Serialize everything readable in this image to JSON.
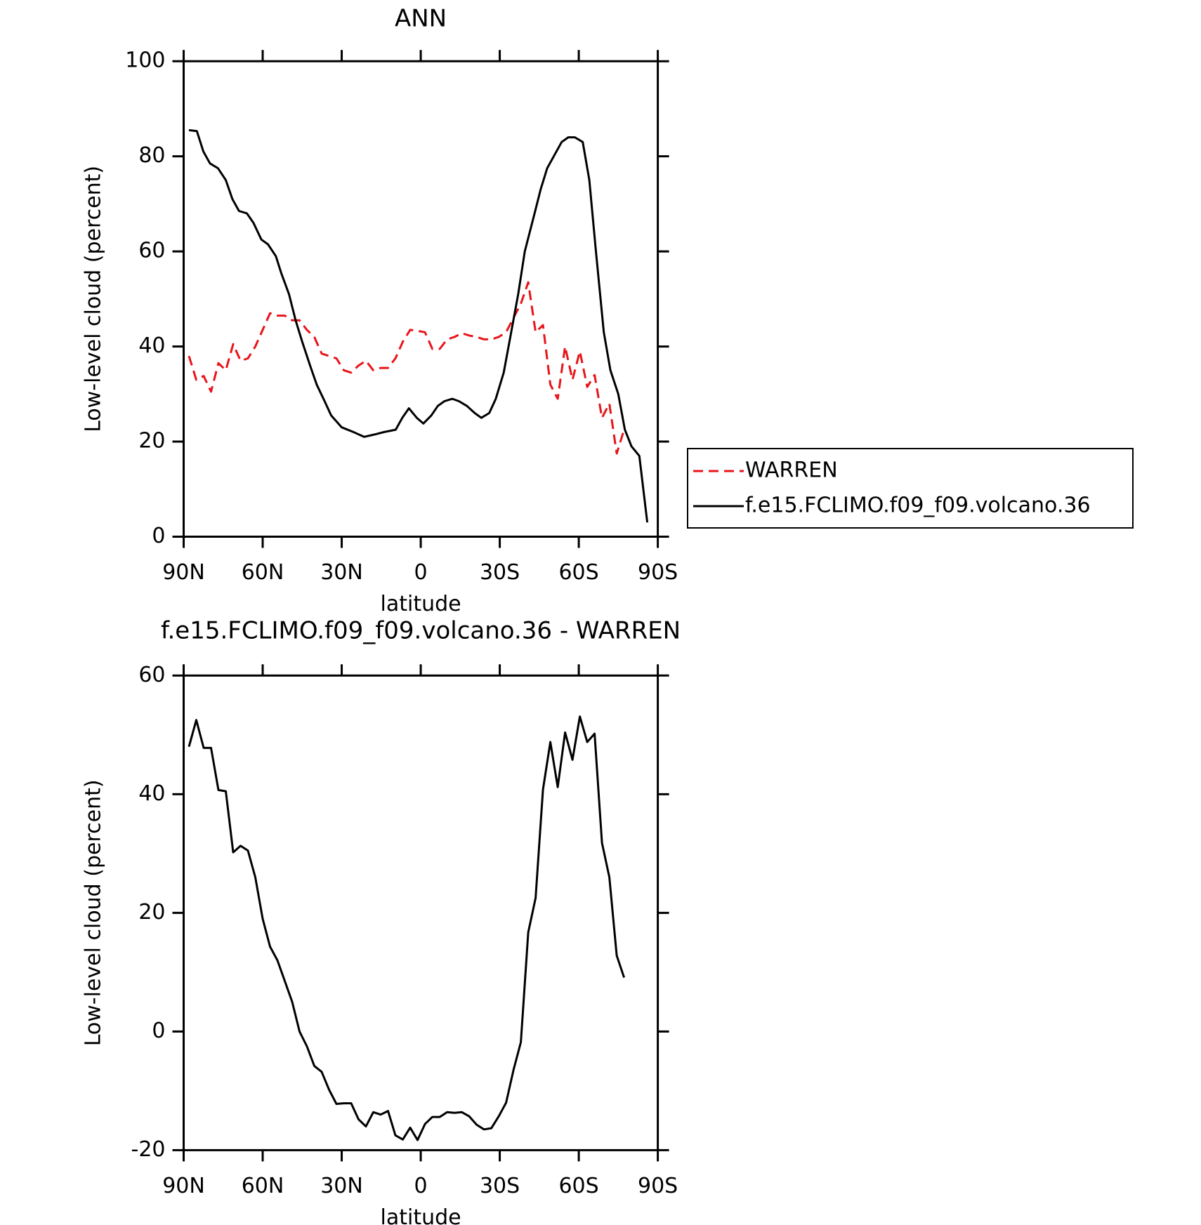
{
  "chart_data": [
    {
      "type": "line",
      "title": "ANN",
      "xlabel": "latitude",
      "ylabel": "Low-level cloud (percent)",
      "xlim": [
        90,
        -90
      ],
      "ylim": [
        0,
        100
      ],
      "xticks": [
        {
          "value": 90,
          "label": "90N"
        },
        {
          "value": 60,
          "label": "60N"
        },
        {
          "value": 30,
          "label": "30N"
        },
        0,
        {
          "value": -30,
          "label": "30S"
        },
        {
          "value": -60,
          "label": "60S"
        },
        {
          "value": -90,
          "label": "90S"
        }
      ],
      "yticks": [
        0,
        20,
        40,
        60,
        80,
        100
      ],
      "legend": "right",
      "series": [
        {
          "name": "WARREN",
          "color": "#e8141a",
          "line_style": "dashed",
          "x": [
            88,
            85.2,
            82.4,
            79.6,
            76.8,
            74,
            71.2,
            68.4,
            65.6,
            62.8,
            60,
            57.2,
            54.4,
            51.6,
            48.8,
            46,
            43.2,
            40.4,
            37.6,
            34.8,
            32,
            29.2,
            26.4,
            23.6,
            20.8,
            18,
            15.2,
            12.4,
            9.6,
            6.8,
            4,
            1.2,
            -1.6,
            -4.4,
            -7.2,
            -10,
            -12.8,
            -15.6,
            -18.4,
            -21.2,
            -24,
            -26.8,
            -29.6,
            -32.4,
            -35.2,
            -38,
            -40.8,
            -43.6,
            -46.4,
            -49.2,
            -52,
            -54.8,
            -57.6,
            -60.4,
            -63.2,
            -66,
            -68.8,
            -71.6,
            -74.4,
            -77.2
          ],
          "values": [
            38,
            33,
            33.8,
            30.5,
            36.5,
            35,
            40.5,
            37,
            37.5,
            40,
            43.5,
            47,
            46.5,
            46.5,
            45.5,
            45.5,
            43.5,
            42,
            38.5,
            38,
            37.5,
            35,
            34.5,
            36,
            37,
            35,
            35.5,
            35.5,
            37.5,
            41,
            43.5,
            43.3,
            43,
            39.5,
            39.5,
            41.5,
            42,
            42.8,
            42.3,
            42,
            41.5,
            41.5,
            42,
            43,
            46,
            49,
            53.5,
            43,
            44.5,
            32,
            29,
            40,
            33,
            39,
            31.5,
            34,
            25,
            28,
            17.5,
            22.5
          ]
        },
        {
          "name": "f.e15.FCLIMO.f09_f09.volcano.36",
          "color": "#000000",
          "line_style": "solid",
          "x": [
            88,
            85,
            82.5,
            80,
            77,
            74,
            71.5,
            69,
            66,
            63.5,
            60.5,
            58,
            55,
            53,
            50,
            47.5,
            45,
            42,
            39.5,
            36.5,
            34,
            30,
            25.5,
            21.5,
            17.5,
            14,
            9.5,
            7,
            4.5,
            1.5,
            -1,
            -4,
            -6.5,
            -9,
            -12,
            -14.5,
            -17.5,
            -20.5,
            -23,
            -26,
            -28.5,
            -31.5,
            -34,
            -37,
            -39.5,
            -43,
            -45.5,
            -48,
            -51,
            -53.5,
            -56,
            -58.5,
            -61.5,
            -64,
            -66.5,
            -69.5,
            -72,
            -75,
            -77.5,
            -80,
            -83,
            -86
          ],
          "values": [
            85.5,
            85.3,
            81,
            78.5,
            77.5,
            75,
            71,
            68.5,
            68,
            66,
            62.5,
            61.5,
            59,
            55.5,
            51,
            45.5,
            41,
            36,
            32,
            28.5,
            25.5,
            23,
            22,
            21,
            21.5,
            22,
            22.5,
            25,
            27,
            25,
            23.8,
            25.5,
            27.5,
            28.5,
            29,
            28.5,
            27.5,
            26,
            25,
            26,
            29,
            34.5,
            42,
            51,
            60,
            67.5,
            73,
            77.5,
            80.5,
            83,
            84,
            84,
            83,
            75,
            60,
            43,
            35,
            30,
            22.5,
            19,
            17,
            3
          ]
        }
      ]
    },
    {
      "type": "line",
      "title": "f.e15.FCLIMO.f09_f09.volcano.36 - WARREN",
      "xlabel": "latitude",
      "ylabel": "Low-level cloud (percent)",
      "xlim": [
        90,
        -90
      ],
      "ylim": [
        -20,
        60
      ],
      "xticks": [
        {
          "value": 90,
          "label": "90N"
        },
        {
          "value": 60,
          "label": "60N"
        },
        {
          "value": 30,
          "label": "30N"
        },
        0,
        {
          "value": -30,
          "label": "30S"
        },
        {
          "value": -60,
          "label": "60S"
        },
        {
          "value": -90,
          "label": "90S"
        }
      ],
      "yticks": [
        -20,
        0,
        20,
        40,
        60
      ],
      "color": "#000000",
      "x": [
        88,
        85.2,
        82.4,
        79.6,
        76.8,
        74,
        71.2,
        68.4,
        65.6,
        62.8,
        60,
        57.2,
        54.4,
        51.6,
        48.8,
        46,
        43.2,
        40.4,
        37.6,
        34.8,
        32,
        29.2,
        26.4,
        23.6,
        20.8,
        18,
        15.2,
        12.4,
        9.6,
        6.8,
        4,
        1.2,
        -1.6,
        -4.4,
        -7.2,
        -10,
        -12.8,
        -15.6,
        -18.4,
        -21.2,
        -24,
        -26.8,
        -29.6,
        -32.4,
        -35.2,
        -38,
        -40.8,
        -43.6,
        -46.4,
        -49.2,
        -52,
        -54.8,
        -57.6,
        -60.4,
        -63.2,
        -66,
        -68.8,
        -71.6,
        -74.4,
        -77.2
      ],
      "values": [
        48,
        52.5,
        47.8,
        47.8,
        40.7,
        40.5,
        30.2,
        31.3,
        30.5,
        26,
        19,
        14.3,
        12,
        8.5,
        5,
        0,
        -2.5,
        -5.8,
        -6.8,
        -9.8,
        -12.2,
        -12.1,
        -12.1,
        -14.8,
        -16,
        -13.6,
        -14,
        -13.4,
        -17.5,
        -18.2,
        -16.2,
        -18.3,
        -15.6,
        -14.4,
        -14.4,
        -13.6,
        -13.7,
        -13.6,
        -14.3,
        -15.7,
        -16.5,
        -16.3,
        -14.3,
        -12,
        -6.5,
        -1.8,
        16.7,
        22.5,
        40.8,
        48.8,
        41.2,
        50.4,
        45.8,
        53.1,
        48.8,
        50.2,
        31.8,
        26,
        12.8,
        9.1
      ]
    }
  ]
}
